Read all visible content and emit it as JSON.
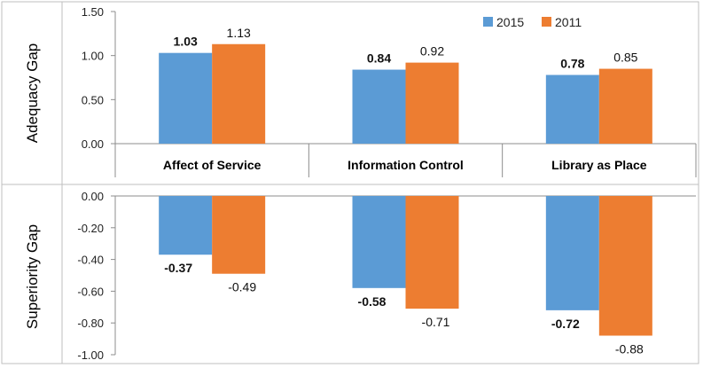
{
  "chart_data": [
    {
      "type": "bar",
      "ylabel": "Adequacy  Gap",
      "categories": [
        "Affect of Service",
        "Information Control",
        "Library as Place"
      ],
      "series": [
        {
          "name": "2015",
          "values": [
            1.03,
            0.84,
            0.78
          ],
          "color": "#5B9BD5",
          "labels": [
            "1.03",
            "0.84",
            "0.78"
          ]
        },
        {
          "name": "2011",
          "values": [
            1.13,
            0.92,
            0.85
          ],
          "color": "#ED7D31",
          "labels": [
            "1.13",
            "0.92",
            "0.85"
          ]
        }
      ],
      "ylim": [
        0,
        1.5
      ],
      "yticks": [
        "1.50",
        "1.00",
        "0.50",
        "0.00"
      ],
      "grid": false,
      "legend": "top-right"
    },
    {
      "type": "bar",
      "ylabel": "Superiority Gap",
      "categories": [
        "Affect of Service",
        "Information Control",
        "Library as Place"
      ],
      "series": [
        {
          "name": "2015",
          "values": [
            -0.37,
            -0.58,
            -0.72
          ],
          "color": "#5B9BD5",
          "labels": [
            "-0.37",
            "-0.58",
            "-0.72"
          ]
        },
        {
          "name": "2011",
          "values": [
            -0.49,
            -0.71,
            -0.88
          ],
          "color": "#ED7D31",
          "labels": [
            "-0.49",
            "-0.71",
            "-0.88"
          ]
        }
      ],
      "ylim": [
        -1.0,
        0
      ],
      "yticks": [
        "0.00",
        "-0.20",
        "-0.40",
        "-0.60",
        "-0.80",
        "-1.00"
      ],
      "grid": false
    }
  ]
}
